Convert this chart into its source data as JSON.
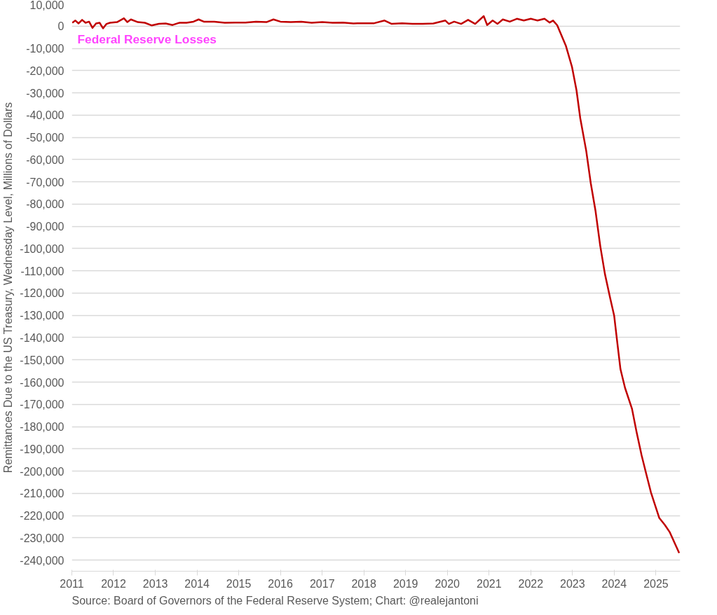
{
  "chart_data": {
    "type": "line",
    "ylabel": "Remittances Due to the US Treasury, Wednesday Level, Millions of Dollars",
    "annotations": [
      "Federal Reserve Losses",
      "Source: Board of Governors of the Federal Reserve System; Chart: @realejantoni"
    ],
    "x": [
      "2011-01-05",
      "2011-02-01",
      "2011-03-01",
      "2011-04-01",
      "2011-05-01",
      "2011-06-01",
      "2011-07-01",
      "2011-08-01",
      "2011-09-01",
      "2011-10-01",
      "2011-11-01",
      "2011-12-01",
      "2012-02-01",
      "2012-04-01",
      "2012-05-01",
      "2012-06-01",
      "2012-08-01",
      "2012-10-01",
      "2012-12-01",
      "2013-02-01",
      "2013-04-01",
      "2013-06-01",
      "2013-08-01",
      "2013-10-01",
      "2013-12-01",
      "2014-01-15",
      "2014-03-01",
      "2014-06-01",
      "2014-09-01",
      "2014-12-01",
      "2015-03-01",
      "2015-06-01",
      "2015-09-01",
      "2015-11-01",
      "2016-01-01",
      "2016-04-01",
      "2016-07-01",
      "2016-10-01",
      "2017-01-01",
      "2017-04-01",
      "2017-07-01",
      "2017-10-01",
      "2018-01-01",
      "2018-04-01",
      "2018-07-01",
      "2018-09-01",
      "2018-12-01",
      "2019-03-01",
      "2019-06-01",
      "2019-09-01",
      "2019-12-15",
      "2020-01-15",
      "2020-03-01",
      "2020-05-01",
      "2020-07-01",
      "2020-09-01",
      "2020-11-15",
      "2020-12-15",
      "2021-02-01",
      "2021-03-15",
      "2021-05-01",
      "2021-07-01",
      "2021-09-01",
      "2021-11-01",
      "2022-01-01",
      "2022-03-01",
      "2022-05-01",
      "2022-06-15",
      "2022-07-15",
      "2022-08-20",
      "2022-11-05",
      "2022-12-28",
      "2023-02-05",
      "2023-03-10",
      "2023-05-01",
      "2023-06-10",
      "2023-07-22",
      "2023-09-01",
      "2023-10-12",
      "2023-11-25",
      "2024-01-01",
      "2024-01-27",
      "2024-02-25",
      "2024-04-05",
      "2024-06-05",
      "2024-07-15",
      "2024-08-28",
      "2024-10-08",
      "2024-11-18",
      "2025-01-30",
      "2025-03-20",
      "2025-05-01",
      "2025-07-23"
    ],
    "series": [
      {
        "color": "#c00000",
        "values": [
          1500,
          2500,
          1200,
          2800,
          1500,
          2000,
          -800,
          1200,
          1500,
          -1000,
          1000,
          1500,
          1800,
          3500,
          1800,
          3000,
          1800,
          1500,
          300,
          1000,
          1200,
          500,
          1500,
          1500,
          2000,
          3000,
          2000,
          2000,
          1500,
          1600,
          1600,
          2000,
          1800,
          3000,
          2000,
          1800,
          2000,
          1500,
          1800,
          1500,
          1600,
          1200,
          1300,
          1300,
          2500,
          1000,
          1300,
          1000,
          1000,
          1200,
          2500,
          1000,
          2000,
          1000,
          2800,
          1000,
          4500,
          500,
          2500,
          1000,
          3000,
          2000,
          3300,
          2500,
          3300,
          2500,
          3300,
          1600,
          2500,
          400,
          -9000,
          -18400,
          -28800,
          -41400,
          -56000,
          -70600,
          -83200,
          -98800,
          -111400,
          -121800,
          -130200,
          -141700,
          -154200,
          -162600,
          -172000,
          -182400,
          -192900,
          -201300,
          -209600,
          -221100,
          -224200,
          -227400,
          -236800
        ]
      }
    ],
    "xlim": [
      "2011-01-01",
      "2025-08-01"
    ],
    "xticks": [
      "2011",
      "2012",
      "2013",
      "2014",
      "2015",
      "2016",
      "2017",
      "2018",
      "2019",
      "2020",
      "2021",
      "2022",
      "2023",
      "2024",
      "2025"
    ],
    "ylim": [
      -245000,
      10000
    ],
    "yticks": [
      {
        "value": 10000,
        "label": "10,000"
      },
      0,
      {
        "value": -10000,
        "label": "-10,000"
      },
      {
        "value": -20000,
        "label": "-20,000"
      },
      {
        "value": -30000,
        "label": "-30,000"
      },
      {
        "value": -40000,
        "label": "-40,000"
      },
      {
        "value": -50000,
        "label": "-50,000"
      },
      {
        "value": -60000,
        "label": "-60,000"
      },
      {
        "value": -70000,
        "label": "-70,000"
      },
      {
        "value": -80000,
        "label": "-80,000"
      },
      {
        "value": -90000,
        "label": "-90,000"
      },
      {
        "value": -100000,
        "label": "-100,000"
      },
      {
        "value": -110000,
        "label": "-110,000"
      },
      {
        "value": -120000,
        "label": "-120,000"
      },
      {
        "value": -130000,
        "label": "-130,000"
      },
      {
        "value": -140000,
        "label": "-140,000"
      },
      {
        "value": -150000,
        "label": "-150,000"
      },
      {
        "value": -160000,
        "label": "-160,000"
      },
      {
        "value": -170000,
        "label": "-170,000"
      },
      {
        "value": -180000,
        "label": "-180,000"
      },
      {
        "value": -190000,
        "label": "-190,000"
      },
      {
        "value": -200000,
        "label": "-200,000"
      },
      {
        "value": -210000,
        "label": "-210,000"
      },
      {
        "value": -220000,
        "label": "-220,000"
      },
      {
        "value": -230000,
        "label": "-230,000"
      },
      {
        "value": -240000,
        "label": "-240,000"
      }
    ],
    "grid": "y",
    "marker": "none",
    "line_style": "solid"
  }
}
